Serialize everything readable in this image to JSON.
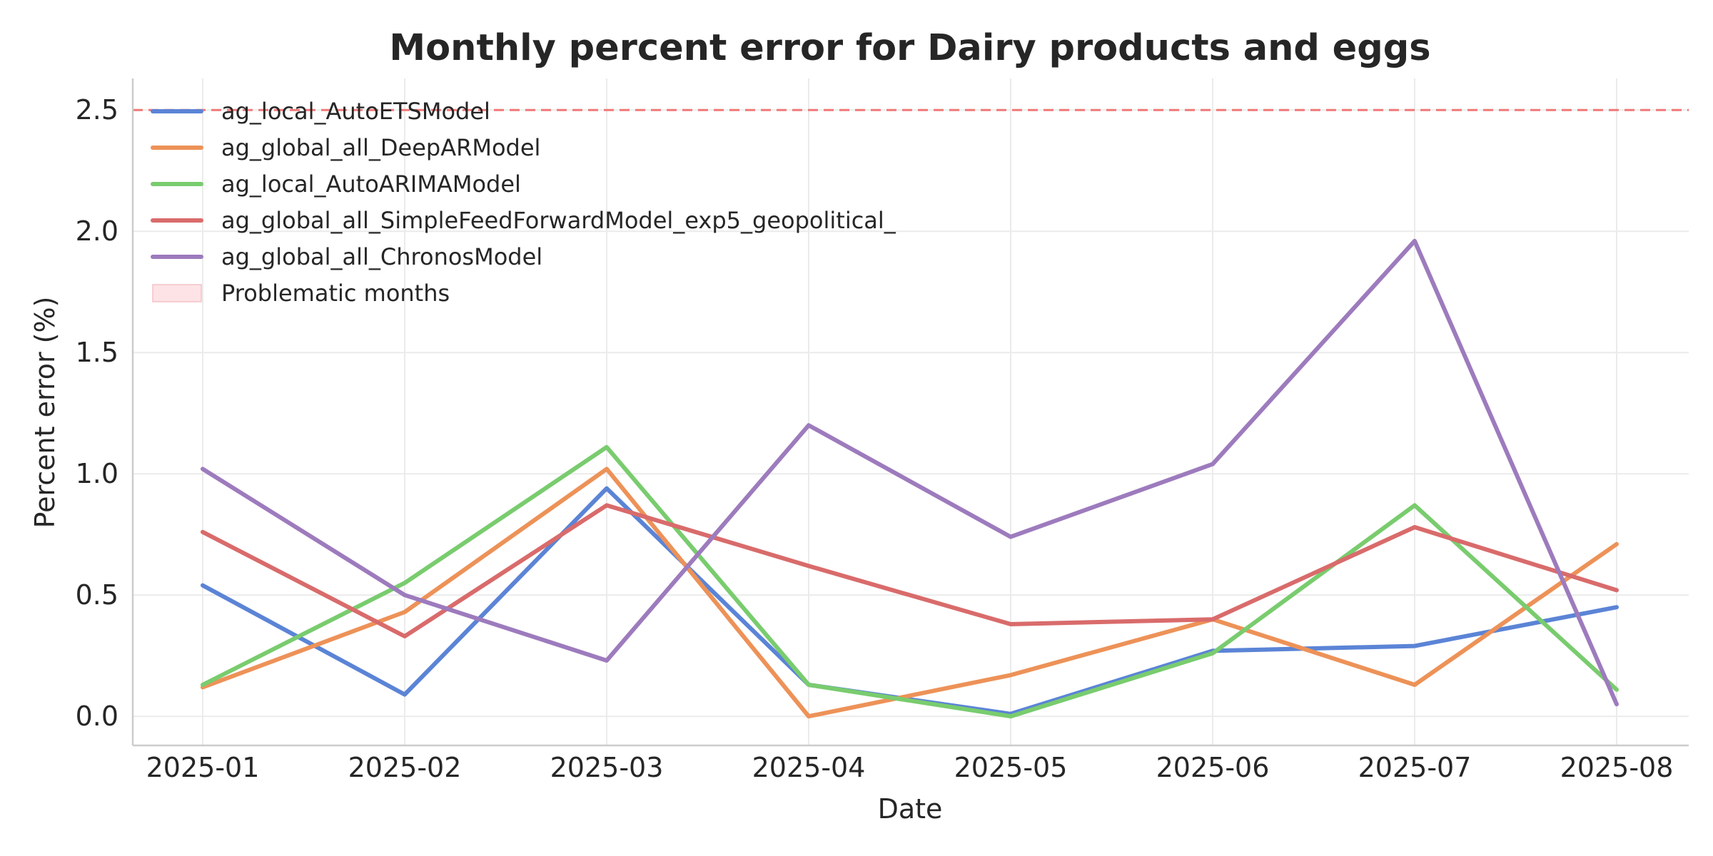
{
  "chart_data": {
    "type": "line",
    "title": "Monthly percent error for Dairy products and eggs",
    "xlabel": "Date",
    "ylabel": "Percent error (%)",
    "x": [
      "2025-01",
      "2025-02",
      "2025-03",
      "2025-04",
      "2025-05",
      "2025-06",
      "2025-07",
      "2025-08"
    ],
    "ylim": [
      -0.12,
      2.63
    ],
    "yticks": [
      0.0,
      0.5,
      1.0,
      1.5,
      2.0,
      2.5
    ],
    "ytick_labels": [
      "0.0",
      "0.5",
      "1.0",
      "1.5",
      "2.0",
      "2.5"
    ],
    "grid": true,
    "legend_position": "top-left",
    "threshold": {
      "value": 2.5,
      "color": "#f07878",
      "style": "dashed"
    },
    "series": [
      {
        "name": "ag_local_AutoETSModel",
        "color": "#5b84d6",
        "values": [
          0.54,
          0.09,
          0.94,
          0.13,
          0.01,
          0.27,
          0.29,
          0.45
        ]
      },
      {
        "name": "ag_global_all_DeepARModel",
        "color": "#ed9258",
        "values": [
          0.12,
          0.43,
          1.02,
          0.0,
          0.17,
          0.4,
          0.13,
          0.71
        ]
      },
      {
        "name": "ag_local_AutoARIMAModel",
        "color": "#79cc6e",
        "values": [
          0.13,
          0.55,
          1.11,
          0.13,
          0.0,
          0.26,
          0.87,
          0.11
        ]
      },
      {
        "name": "ag_global_all_SimpleFeedForwardModel_exp5_geopolitical_",
        "color": "#d96b6b",
        "values": [
          0.76,
          0.33,
          0.87,
          0.62,
          0.38,
          0.4,
          0.78,
          0.52
        ]
      },
      {
        "name": "ag_global_all_ChronosModel",
        "color": "#9d7bbd",
        "values": [
          1.02,
          0.5,
          0.23,
          1.2,
          0.74,
          1.04,
          1.96,
          0.05
        ]
      }
    ],
    "legend_extra": {
      "name": "Problematic months",
      "color": "#fde3e6"
    }
  }
}
